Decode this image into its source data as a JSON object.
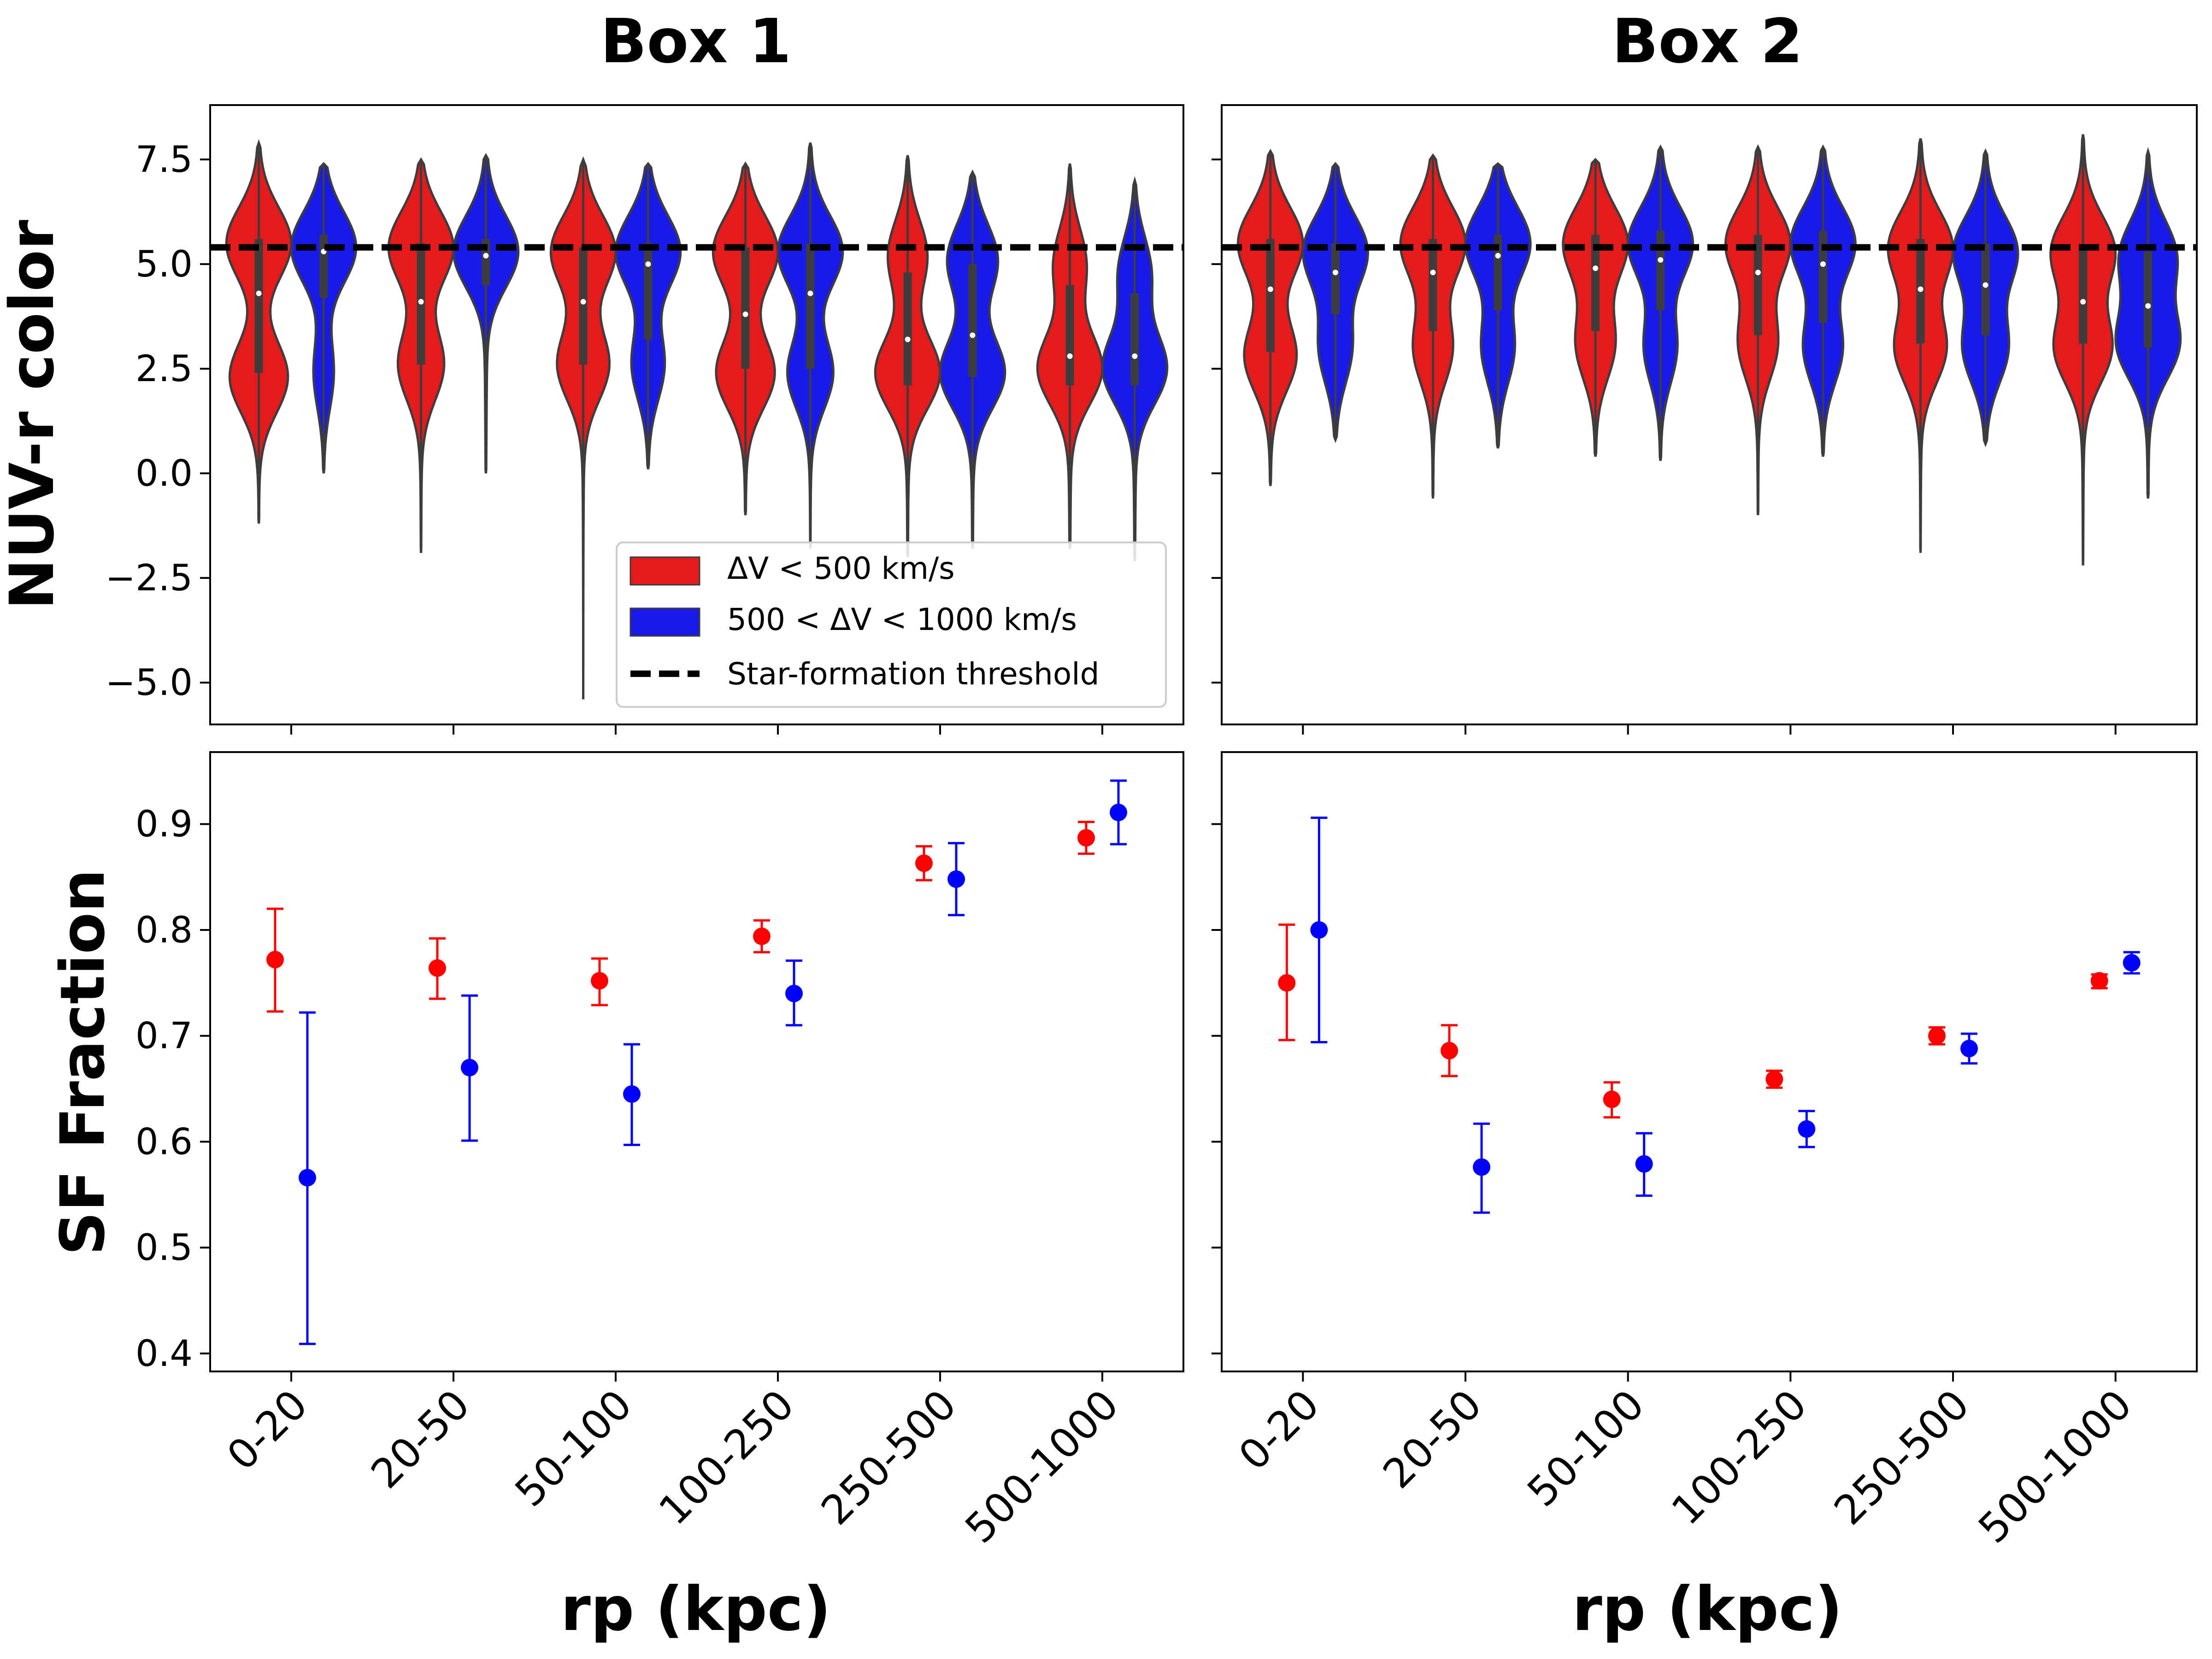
{
  "colors": {
    "red": "#ff0000",
    "blue": "#0000ff",
    "violin_red": "#e41a1c",
    "violin_blue": "#1a1ae8",
    "edge": "#3d3d3d",
    "threshold": "#000000"
  },
  "chart_data": [
    {
      "type": "violin",
      "panel": "top-left",
      "title": "Box 1",
      "xlabel": "",
      "ylabel": "NUV-r color",
      "ylim": [
        -6.0,
        8.8
      ],
      "yticks": [
        -5.0,
        -2.5,
        0.0,
        2.5,
        5.0,
        7.5
      ],
      "ytick_labels": [
        "−5.0",
        "−2.5",
        "0.0",
        "2.5",
        "5.0",
        "7.5"
      ],
      "threshold": 5.4,
      "legend": {
        "placement": "lower-right",
        "entries": [
          "ΔV < 500 km/s",
          "500 < ΔV < 1000 km/s",
          "Star-formation threshold"
        ]
      },
      "categories": [
        "0-20",
        "20-50",
        "50-100",
        "100-250",
        "250-500",
        "500-1000"
      ],
      "series": [
        {
          "name": "ΔV < 500 km/s",
          "color": "red",
          "violins": [
            {
              "min": -1.2,
              "max": 7.9,
              "q1": 2.4,
              "median": 4.3,
              "q3": 5.6,
              "modes": [
                [
                  2.3,
                  0.9
                ],
                [
                  5.5,
                  1.0
                ]
              ]
            },
            {
              "min": -1.9,
              "max": 7.5,
              "q1": 2.6,
              "median": 4.1,
              "q3": 5.5,
              "modes": [
                [
                  2.6,
                  0.7
                ],
                [
                  5.4,
                  1.0
                ]
              ]
            },
            {
              "min": -5.4,
              "max": 7.5,
              "q1": 2.6,
              "median": 4.1,
              "q3": 5.4,
              "modes": [
                [
                  2.6,
                  0.8
                ],
                [
                  5.3,
                  1.0
                ]
              ]
            },
            {
              "min": -1.0,
              "max": 7.4,
              "q1": 2.5,
              "median": 3.8,
              "q3": 5.4,
              "modes": [
                [
                  2.4,
                  0.9
                ],
                [
                  5.3,
                  1.0
                ]
              ]
            },
            {
              "min": -2.0,
              "max": 7.6,
              "q1": 2.1,
              "median": 3.2,
              "q3": 4.8,
              "modes": [
                [
                  2.4,
                  1.0
                ],
                [
                  5.2,
                  0.6
                ]
              ]
            },
            {
              "min": -1.8,
              "max": 7.4,
              "q1": 2.1,
              "median": 2.8,
              "q3": 4.5,
              "modes": [
                [
                  2.5,
                  1.0
                ],
                [
                  5.0,
                  0.5
                ]
              ]
            }
          ]
        },
        {
          "name": "500 < ΔV < 1000 km/s",
          "color": "blue",
          "violins": [
            {
              "min": 0.0,
              "max": 7.4,
              "q1": 4.2,
              "median": 5.3,
              "q3": 5.7,
              "modes": [
                [
                  2.4,
                  0.3
                ],
                [
                  5.4,
                  1.0
                ]
              ]
            },
            {
              "min": 0.0,
              "max": 7.6,
              "q1": 4.5,
              "median": 5.2,
              "q3": 5.6,
              "modes": [
                [
                  5.3,
                  1.0
                ]
              ]
            },
            {
              "min": 0.1,
              "max": 7.4,
              "q1": 3.2,
              "median": 5.0,
              "q3": 5.5,
              "modes": [
                [
                  2.6,
                  0.5
                ],
                [
                  5.3,
                  1.0
                ]
              ]
            },
            {
              "min": -1.8,
              "max": 7.9,
              "q1": 2.5,
              "median": 4.3,
              "q3": 5.5,
              "modes": [
                [
                  2.4,
                  0.7
                ],
                [
                  5.3,
                  1.0
                ]
              ]
            },
            {
              "min": -1.8,
              "max": 7.2,
              "q1": 2.3,
              "median": 3.3,
              "q3": 5.0,
              "modes": [
                [
                  2.4,
                  0.9
                ],
                [
                  5.1,
                  0.7
                ]
              ]
            },
            {
              "min": -2.1,
              "max": 7.0,
              "q1": 2.1,
              "median": 2.8,
              "q3": 4.3,
              "modes": [
                [
                  2.5,
                  1.0
                ],
                [
                  4.8,
                  0.5
                ]
              ]
            }
          ]
        }
      ]
    },
    {
      "type": "violin",
      "panel": "top-right",
      "title": "Box 2",
      "xlabel": "",
      "ylabel": "",
      "ylim": [
        -6.0,
        8.8
      ],
      "threshold": 5.4,
      "categories": [
        "0-20",
        "20-50",
        "50-100",
        "100-250",
        "250-500",
        "500-1000"
      ],
      "series": [
        {
          "name": "ΔV < 500 km/s",
          "color": "red",
          "violins": [
            {
              "min": -0.3,
              "max": 7.7,
              "q1": 2.9,
              "median": 4.4,
              "q3": 5.6,
              "modes": [
                [
                  2.8,
                  0.8
                ],
                [
                  5.5,
                  1.0
                ]
              ]
            },
            {
              "min": -0.6,
              "max": 7.6,
              "q1": 3.4,
              "median": 4.8,
              "q3": 5.6,
              "modes": [
                [
                  3.0,
                  0.6
                ],
                [
                  5.5,
                  1.0
                ]
              ]
            },
            {
              "min": 0.4,
              "max": 7.5,
              "q1": 3.4,
              "median": 4.9,
              "q3": 5.7,
              "modes": [
                [
                  3.1,
                  0.6
                ],
                [
                  5.5,
                  1.0
                ]
              ]
            },
            {
              "min": -1.0,
              "max": 7.8,
              "q1": 3.3,
              "median": 4.8,
              "q3": 5.7,
              "modes": [
                [
                  3.1,
                  0.6
                ],
                [
                  5.5,
                  1.0
                ]
              ]
            },
            {
              "min": -1.9,
              "max": 8.0,
              "q1": 3.1,
              "median": 4.4,
              "q3": 5.6,
              "modes": [
                [
                  3.0,
                  0.8
                ],
                [
                  5.4,
                  1.0
                ]
              ]
            },
            {
              "min": -2.2,
              "max": 8.1,
              "q1": 3.1,
              "median": 4.1,
              "q3": 5.4,
              "modes": [
                [
                  3.0,
                  0.9
                ],
                [
                  5.3,
                  1.0
                ]
              ]
            }
          ]
        },
        {
          "name": "500 < ΔV < 1000 km/s",
          "color": "blue",
          "violins": [
            {
              "min": 0.8,
              "max": 7.4,
              "q1": 3.8,
              "median": 4.8,
              "q3": 5.5,
              "modes": [
                [
                  3.0,
                  0.5
                ],
                [
                  5.3,
                  1.0
                ]
              ]
            },
            {
              "min": 0.6,
              "max": 7.4,
              "q1": 3.9,
              "median": 5.2,
              "q3": 5.7,
              "modes": [
                [
                  3.0,
                  0.5
                ],
                [
                  5.5,
                  1.0
                ]
              ]
            },
            {
              "min": 0.3,
              "max": 7.8,
              "q1": 3.9,
              "median": 5.1,
              "q3": 5.8,
              "modes": [
                [
                  3.0,
                  0.5
                ],
                [
                  5.5,
                  1.0
                ]
              ]
            },
            {
              "min": 0.4,
              "max": 7.8,
              "q1": 3.6,
              "median": 5.0,
              "q3": 5.8,
              "modes": [
                [
                  3.0,
                  0.6
                ],
                [
                  5.5,
                  1.0
                ]
              ]
            },
            {
              "min": 0.7,
              "max": 7.7,
              "q1": 3.3,
              "median": 4.5,
              "q3": 5.5,
              "modes": [
                [
                  3.0,
                  0.7
                ],
                [
                  5.3,
                  1.0
                ]
              ]
            },
            {
              "min": -0.6,
              "max": 7.7,
              "q1": 3.0,
              "median": 4.0,
              "q3": 5.3,
              "modes": [
                [
                  3.1,
                  1.0
                ],
                [
                  5.2,
                  0.9
                ]
              ]
            }
          ]
        }
      ]
    },
    {
      "type": "scatter",
      "panel": "bottom-left",
      "title": "",
      "xlabel": "rp (kpc)",
      "ylabel": "SF Fraction",
      "ylim": [
        0.383,
        0.968
      ],
      "yticks": [
        0.4,
        0.5,
        0.6,
        0.7,
        0.8,
        0.9
      ],
      "ytick_labels": [
        "0.4",
        "0.5",
        "0.6",
        "0.7",
        "0.8",
        "0.9"
      ],
      "categories": [
        "0-20",
        "20-50",
        "50-100",
        "100-250",
        "250-500",
        "500-1000"
      ],
      "series": [
        {
          "name": "ΔV < 500 km/s",
          "color": "red",
          "values": [
            0.772,
            0.764,
            0.752,
            0.794,
            0.863,
            0.887
          ],
          "err_low": [
            0.723,
            0.735,
            0.729,
            0.779,
            0.847,
            0.872
          ],
          "err_high": [
            0.82,
            0.792,
            0.773,
            0.809,
            0.879,
            0.902
          ]
        },
        {
          "name": "500 < ΔV < 1000 km/s",
          "color": "blue",
          "values": [
            0.566,
            0.67,
            0.645,
            0.74,
            0.848,
            0.911
          ],
          "err_low": [
            0.409,
            0.601,
            0.597,
            0.71,
            0.814,
            0.881
          ],
          "err_high": [
            0.722,
            0.738,
            0.692,
            0.771,
            0.882,
            0.941
          ]
        }
      ]
    },
    {
      "type": "scatter",
      "panel": "bottom-right",
      "title": "",
      "xlabel": "rp (kpc)",
      "ylabel": "",
      "ylim": [
        0.383,
        0.968
      ],
      "categories": [
        "0-20",
        "20-50",
        "50-100",
        "100-250",
        "250-500",
        "500-1000"
      ],
      "series": [
        {
          "name": "ΔV < 500 km/s",
          "color": "red",
          "values": [
            0.75,
            0.686,
            0.64,
            0.659,
            0.7,
            0.752
          ],
          "err_low": [
            0.696,
            0.662,
            0.623,
            0.651,
            0.692,
            0.745
          ],
          "err_high": [
            0.805,
            0.71,
            0.656,
            0.667,
            0.708,
            0.758
          ]
        },
        {
          "name": "500 < ΔV < 1000 km/s",
          "color": "blue",
          "values": [
            0.8,
            0.576,
            0.579,
            0.612,
            0.688,
            0.769
          ],
          "err_low": [
            0.694,
            0.533,
            0.549,
            0.595,
            0.674,
            0.759
          ],
          "err_high": [
            0.906,
            0.617,
            0.608,
            0.629,
            0.702,
            0.779
          ]
        }
      ]
    }
  ]
}
